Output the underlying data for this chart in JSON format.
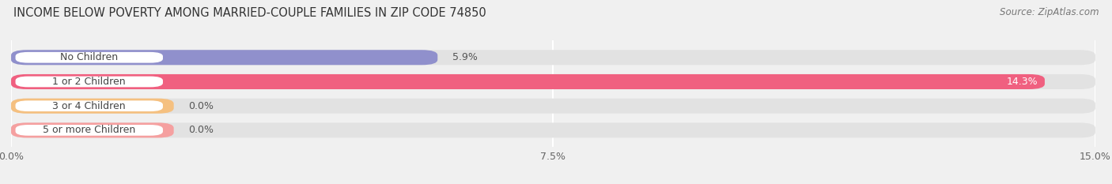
{
  "title": "INCOME BELOW POVERTY AMONG MARRIED-COUPLE FAMILIES IN ZIP CODE 74850",
  "source": "Source: ZipAtlas.com",
  "categories": [
    "No Children",
    "1 or 2 Children",
    "3 or 4 Children",
    "5 or more Children"
  ],
  "values": [
    5.9,
    14.3,
    0.0,
    0.0
  ],
  "bar_colors": [
    "#9090cc",
    "#f06080",
    "#f5c080",
    "#f5a0a0"
  ],
  "background_color": "#f0f0f0",
  "bar_bg_color": "#e2e2e2",
  "xlim": [
    0,
    15.0
  ],
  "xticks": [
    0.0,
    7.5,
    15.0
  ],
  "xticklabels": [
    "0.0%",
    "7.5%",
    "15.0%"
  ],
  "title_fontsize": 10.5,
  "source_fontsize": 8.5,
  "bar_height": 0.62,
  "label_fontsize": 9,
  "value_label_fontsize": 9
}
